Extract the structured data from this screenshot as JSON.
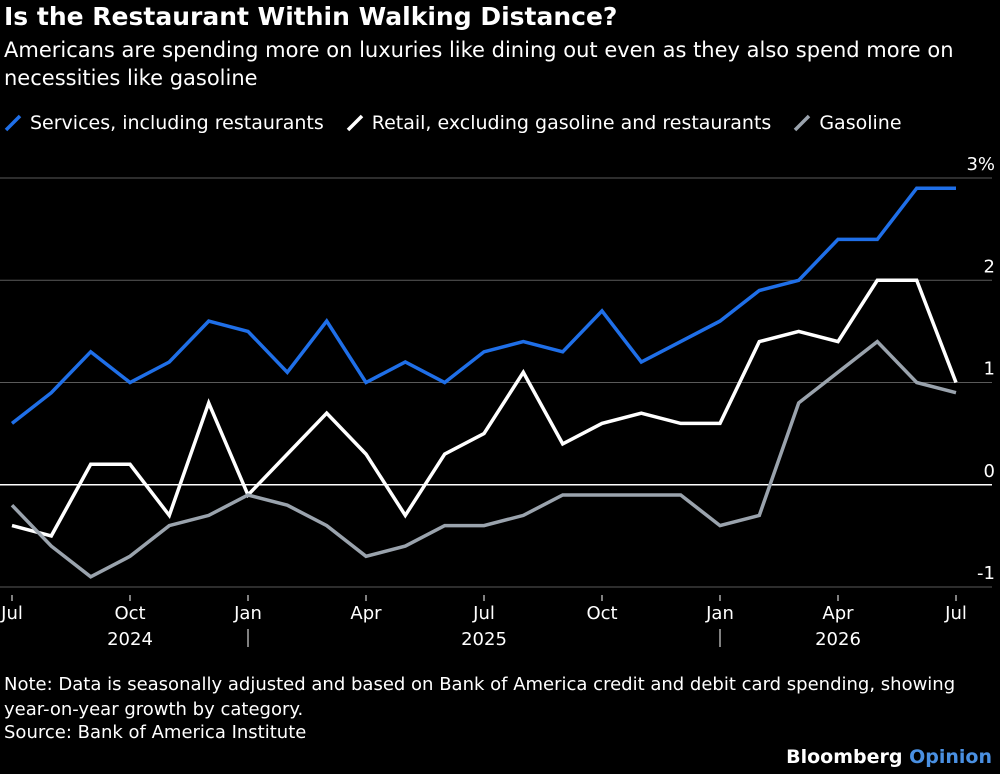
{
  "title": "Is the Restaurant Within Walking Distance?",
  "subtitle": "Americans are spending more on luxuries like dining out even as they also spend more on necessities like gasoline",
  "note": "Note: Data is seasonally adjusted and based on Bank of America credit and debit card spending, showing year-on-year growth by category.",
  "source": "Source: Bank of America Institute",
  "brand": {
    "name": "Bloomberg",
    "suffix": "Opinion"
  },
  "colors": {
    "background": "#000000",
    "services": "#1f6fe8",
    "retail": "#ffffff",
    "gasoline": "#9aa3ad",
    "brand_accent": "#4a90e2"
  },
  "chart_data": {
    "type": "line",
    "xlabel": "",
    "ylabel": "",
    "ylim": [
      -1,
      3
    ],
    "y_ticks": [
      {
        "value": 3,
        "label": "3%"
      },
      {
        "value": 2,
        "label": "2"
      },
      {
        "value": 1,
        "label": "1"
      },
      {
        "value": 0,
        "label": "0"
      },
      {
        "value": -1,
        "label": "-1"
      }
    ],
    "grid": true,
    "legend_position": "top-left",
    "x": [
      "2024-07",
      "2024-08",
      "2024-09",
      "2024-10",
      "2024-11",
      "2024-12",
      "2025-01",
      "2025-02",
      "2025-03",
      "2025-04",
      "2025-05",
      "2025-06",
      "2025-07",
      "2025-08",
      "2025-09",
      "2025-10",
      "2025-11",
      "2025-12",
      "2026-01",
      "2026-02",
      "2026-03",
      "2026-04",
      "2026-05",
      "2026-06",
      "2026-07"
    ],
    "x_ticks": [
      {
        "x": "2024-07",
        "label": "Jul"
      },
      {
        "x": "2024-10",
        "label": "Oct"
      },
      {
        "x": "2025-01",
        "label": "Jan"
      },
      {
        "x": "2025-04",
        "label": "Apr"
      },
      {
        "x": "2025-07",
        "label": "Jul"
      },
      {
        "x": "2025-10",
        "label": "Oct"
      },
      {
        "x": "2026-01",
        "label": "Jan"
      },
      {
        "x": "2026-04",
        "label": "Apr"
      },
      {
        "x": "2026-07",
        "label": "Jul"
      }
    ],
    "year_labels": [
      {
        "x": "2024-10",
        "label": "2024"
      },
      {
        "x": "2025-07",
        "label": "2025"
      },
      {
        "x": "2026-04",
        "label": "2026"
      }
    ],
    "year_dividers": [
      "2025-01",
      "2026-01"
    ],
    "series": [
      {
        "name": "Services, including restaurants",
        "color": "#1f6fe8",
        "values": [
          0.6,
          0.9,
          1.3,
          1.0,
          1.2,
          1.6,
          1.5,
          1.1,
          1.6,
          1.0,
          1.2,
          1.0,
          1.3,
          1.4,
          1.3,
          1.7,
          1.2,
          1.4,
          1.6,
          1.9,
          2.0,
          2.4,
          2.4,
          2.9,
          2.9
        ]
      },
      {
        "name": "Retail, excluding gasoline and restaurants",
        "color": "#ffffff",
        "values": [
          -0.4,
          -0.5,
          0.2,
          0.2,
          -0.3,
          0.8,
          -0.1,
          0.3,
          0.7,
          0.3,
          -0.3,
          0.3,
          0.5,
          1.1,
          0.4,
          0.6,
          0.7,
          0.6,
          0.6,
          1.4,
          1.5,
          1.4,
          2.0,
          2.0,
          1.0
        ]
      },
      {
        "name": "Gasoline",
        "color": "#9aa3ad",
        "values": [
          -0.2,
          -0.6,
          -0.9,
          -0.7,
          -0.4,
          -0.3,
          -0.1,
          -0.2,
          -0.4,
          -0.7,
          -0.6,
          -0.4,
          -0.4,
          -0.3,
          -0.1,
          -0.1,
          -0.1,
          -0.1,
          -0.4,
          -0.3,
          0.8,
          1.1,
          1.4,
          1.0,
          0.9
        ]
      }
    ]
  }
}
